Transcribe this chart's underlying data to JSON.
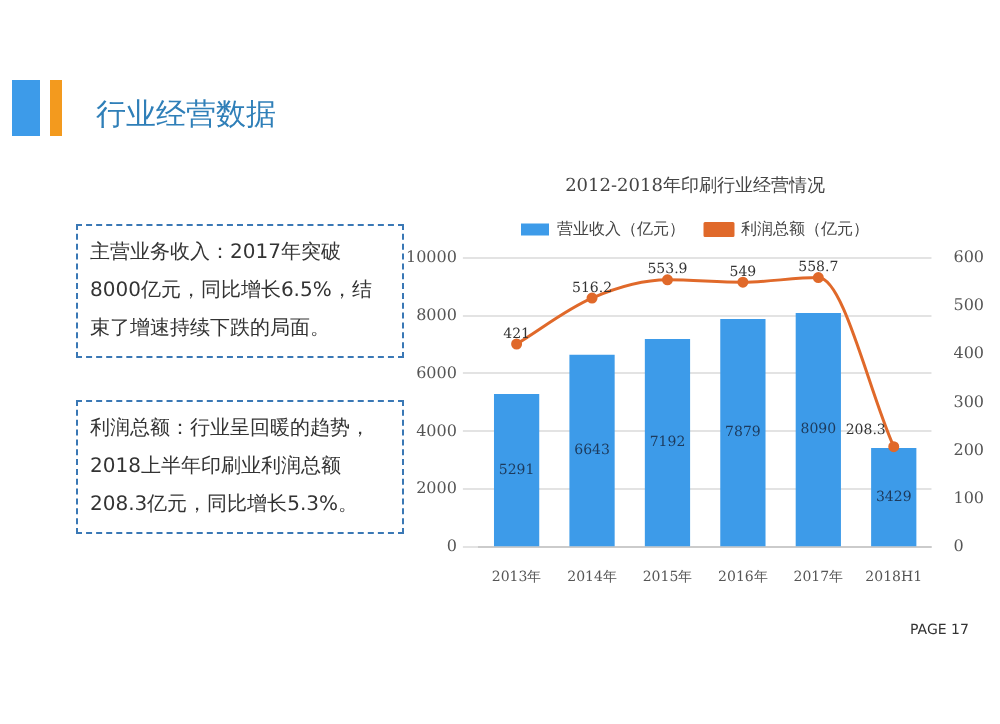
{
  "chart_data": {
    "type": "bar",
    "title": "2012-2018年印刷行业经营情况",
    "categories": [
      "2013年",
      "2014年",
      "2015年",
      "2016年",
      "2017年",
      "2018H1"
    ],
    "series": [
      {
        "name": "营业收入（亿元）",
        "color": "#3d9be9",
        "values": [
          5291,
          6643,
          7192,
          7879,
          8090,
          3429
        ]
      },
      {
        "name": "利润总额（亿元）",
        "type": "line",
        "axis": "y2",
        "color": "#e0692a",
        "marker": "circle",
        "values": [
          421,
          516.2,
          553.9,
          549.0,
          558.7,
          208.3
        ]
      }
    ],
    "ylim": [
      0,
      10000
    ],
    "yticks": [
      0,
      2000,
      4000,
      6000,
      8000,
      10000
    ],
    "y2lim": [
      0,
      600
    ],
    "y2ticks": [
      0,
      100,
      200,
      300,
      400,
      500,
      600
    ],
    "grid": "y",
    "legend": "top",
    "data_labels": true,
    "annotations": [
      "行业经营数据",
      "主营业务收入：2017年突破8000亿元，同比增长6.5%，结束了增速持续下跌的局面。",
      "利润总额：行业呈回暖的趋势， 2018上半年印刷业利润总额208.3亿元，同比增长5.3%。",
      "PAGE 17"
    ]
  }
}
